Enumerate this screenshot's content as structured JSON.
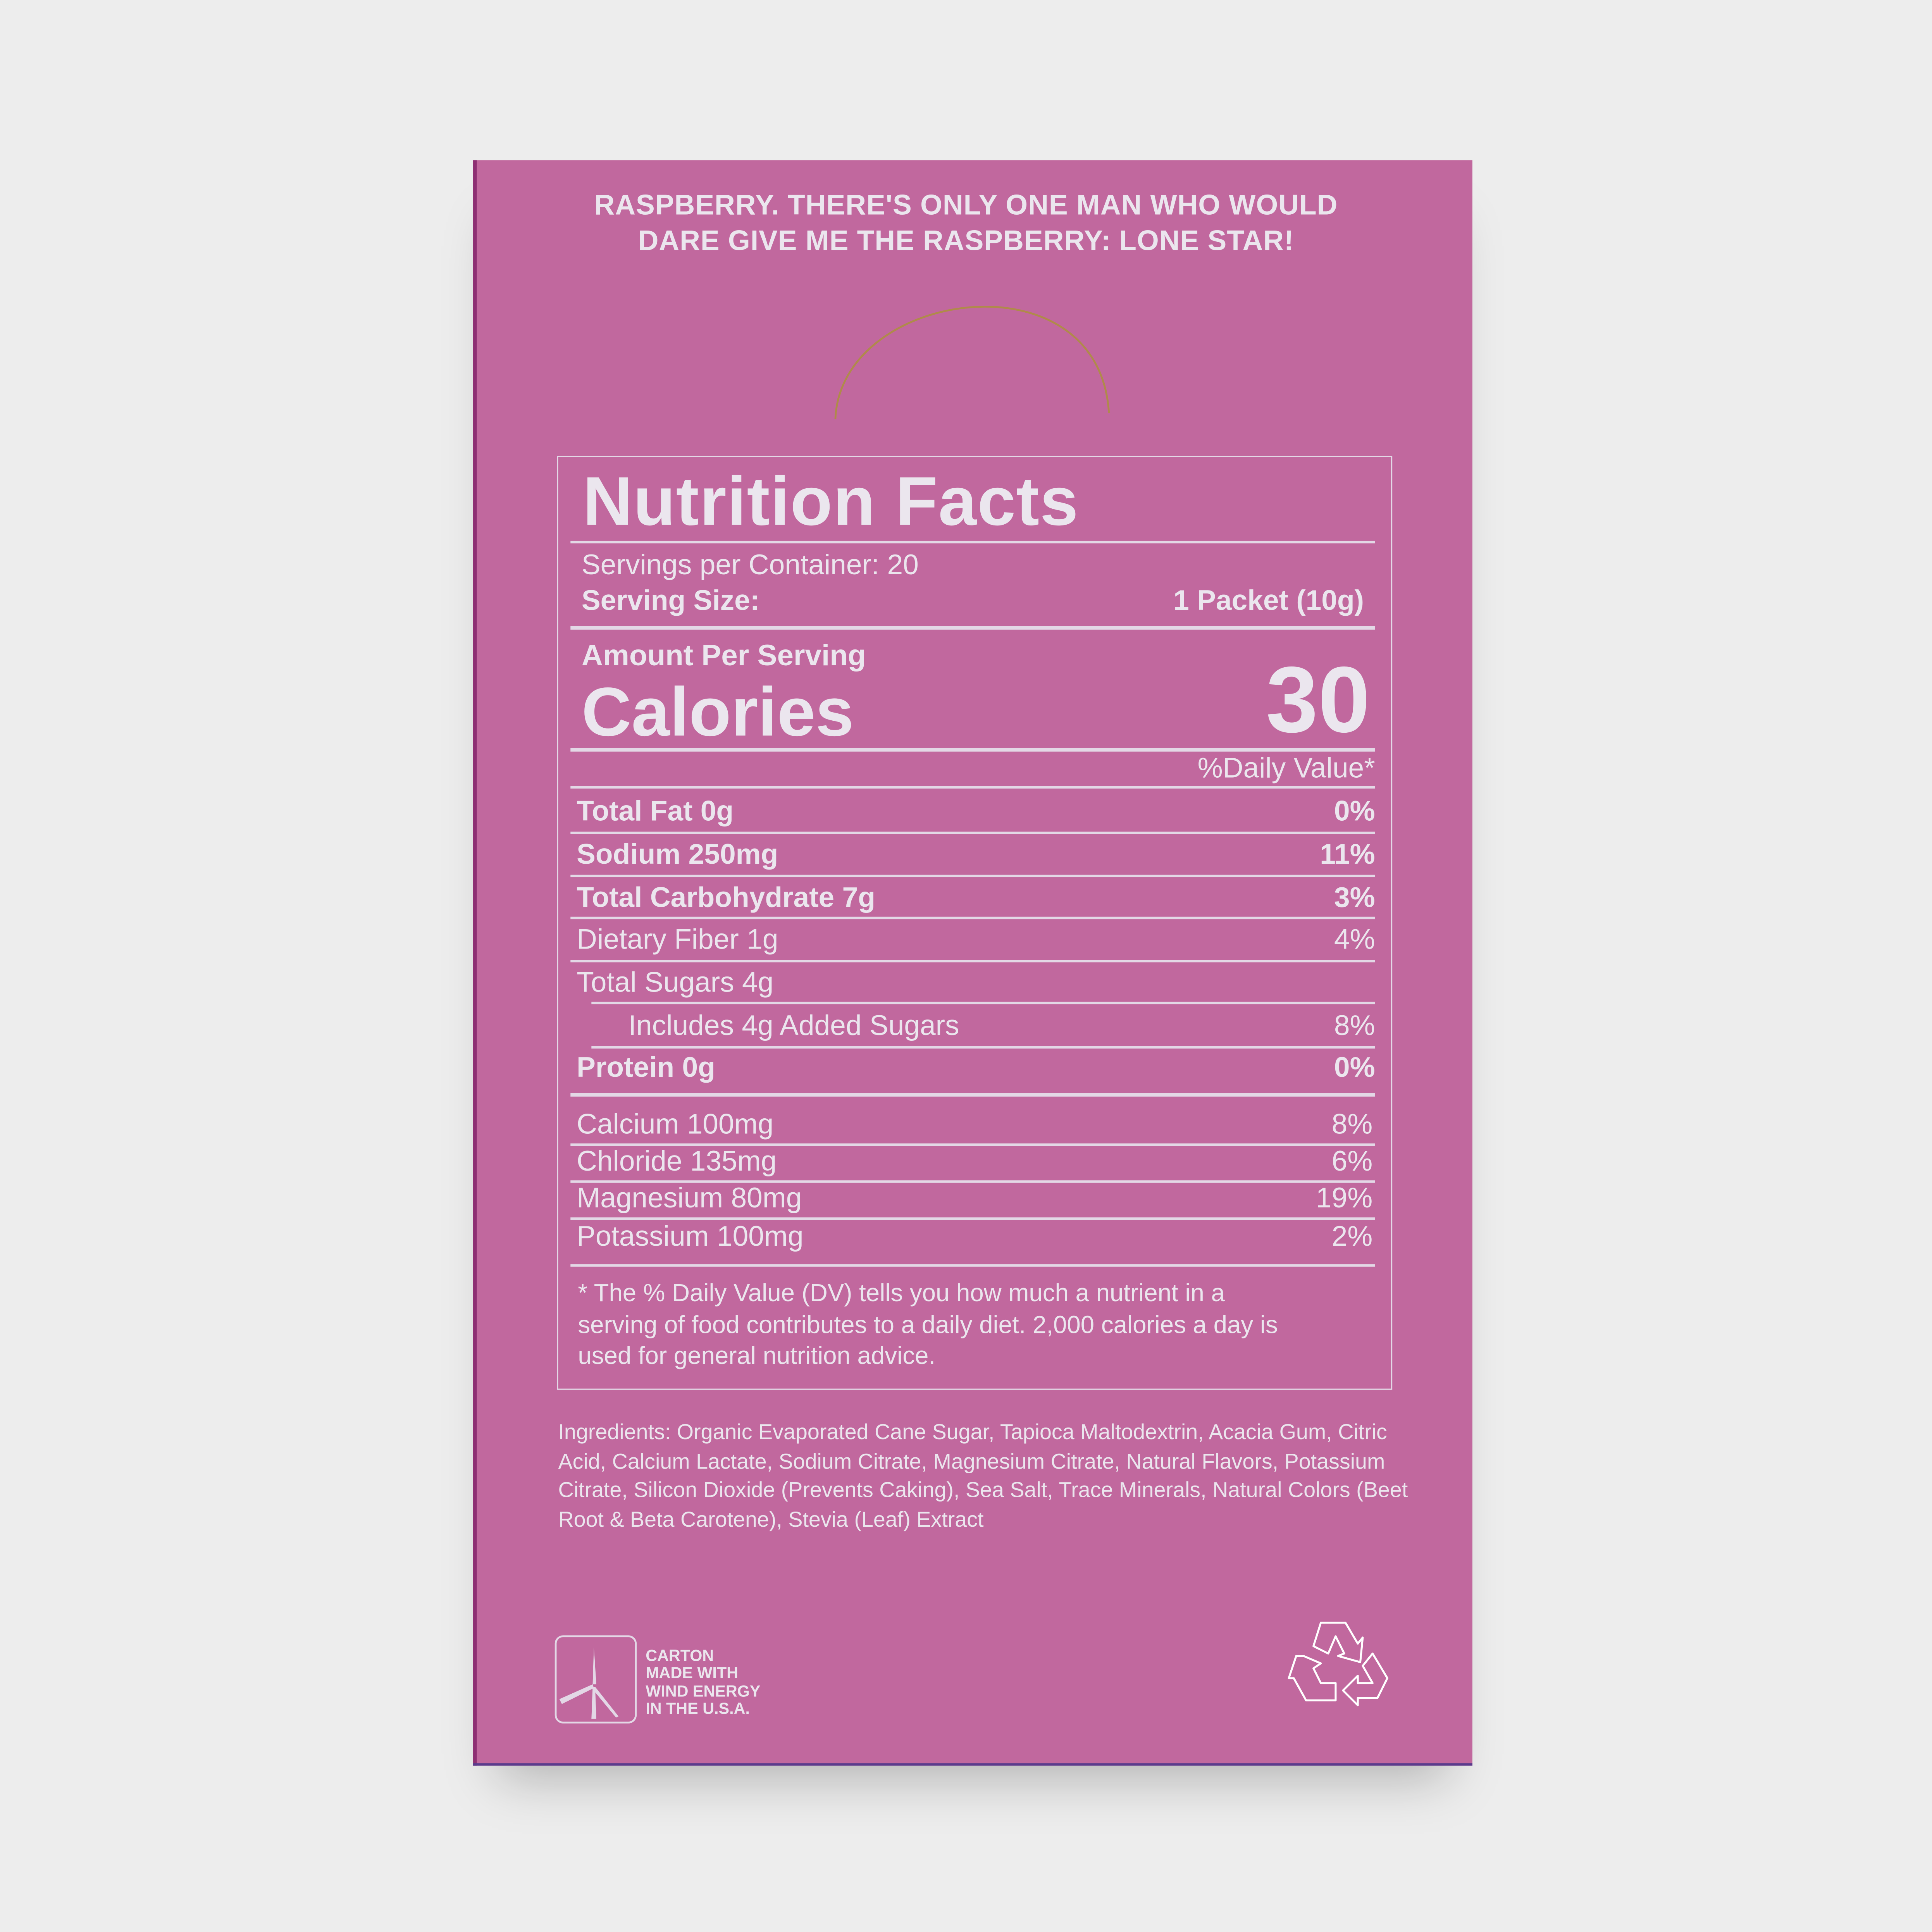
{
  "tagline": [
    "RASPBERRY. THERE'S ONLY ONE MAN WHO WOULD",
    "DARE GIVE ME THE RASPBERRY: LONE STAR!"
  ],
  "nutrition": {
    "title": "Nutrition Facts",
    "servings_per_container": "Servings per Container: 20",
    "serving_size_label": "Serving Size:",
    "serving_size_value": "1 Packet (10g)",
    "amount_per_serving": "Amount Per Serving",
    "calories_label": "Calories",
    "calories_value": "30",
    "daily_value_header": "%Daily Value*",
    "rows": [
      {
        "label": "Total Fat 0g",
        "dv": "0%",
        "bold": true
      },
      {
        "label": "Sodium 250mg",
        "dv": "11%",
        "bold": true
      },
      {
        "label": "Total Carbohydrate 7g",
        "dv": "3%",
        "bold": true
      },
      {
        "label": "Dietary Fiber 1g",
        "dv": "4%",
        "bold": false
      },
      {
        "label": "Total Sugars 4g",
        "dv": "",
        "bold": false
      },
      {
        "label": "Includes 4g Added Sugars",
        "dv": "8%",
        "bold": false
      },
      {
        "label": "Protein 0g",
        "dv": "0%",
        "bold": true
      }
    ],
    "minerals": [
      {
        "label": "Calcium 100mg",
        "dv": "8%"
      },
      {
        "label": "Chloride 135mg",
        "dv": "6%"
      },
      {
        "label": "Magnesium 80mg",
        "dv": "19%"
      },
      {
        "label": "Potassium 100mg",
        "dv": "2%"
      }
    ],
    "footnote": [
      "* The % Daily Value (DV) tells you how much a nutrient in a",
      "serving of food contributes to a daily diet. 2,000 calories a day is",
      "used for general nutrition advice."
    ]
  },
  "ingredients": "Ingredients: Organic Evaporated Cane Sugar, Tapioca Maltodextrin, Acacia Gum, Citric Acid, Calcium Lactate, Sodium Citrate, Magnesium Citrate, Natural Flavors, Potassium Citrate, Silicon Dioxide (Prevents Caking), Sea Salt, Trace Minerals, Natural Colors (Beet Root & Beta Carotene), Stevia (Leaf) Extract",
  "carton_badge": [
    "CARTON",
    "MADE WITH",
    "WIND ENERGY",
    "IN THE U.S.A."
  ],
  "icons": {
    "wind": "wind-turbine-icon",
    "recycle": "recycle-icon"
  },
  "colors": {
    "carton": "#c1689e",
    "text": "#ebe6ee",
    "background": "#ededed"
  }
}
